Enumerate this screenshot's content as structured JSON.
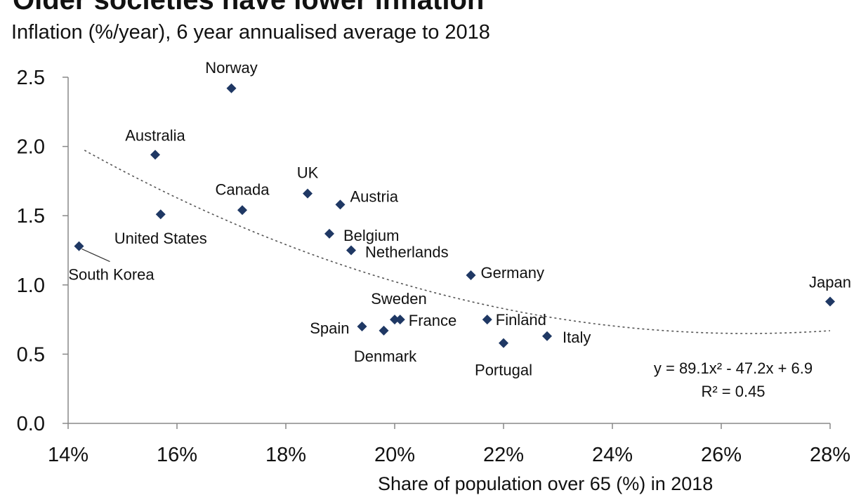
{
  "chart_data": {
    "type": "scatter",
    "title": "Older societies have lower inflation",
    "subtitle": "Inflation (%/year), 6 year annualised average to 2018",
    "xlabel": "Share of population over 65 (%) in 2018",
    "ylabel": "",
    "xlim": [
      14,
      28
    ],
    "ylim": [
      0,
      2.5
    ],
    "x_ticks": [
      "14%",
      "16%",
      "18%",
      "20%",
      "22%",
      "24%",
      "26%",
      "28%"
    ],
    "y_ticks": [
      "0.0",
      "0.5",
      "1.0",
      "1.5",
      "2.0",
      "2.5"
    ],
    "grid": false,
    "marker_color": "#1f3864",
    "points": [
      {
        "label": "Norway",
        "x": 17.0,
        "y": 2.42
      },
      {
        "label": "Australia",
        "x": 15.6,
        "y": 1.94
      },
      {
        "label": "United States",
        "x": 15.7,
        "y": 1.51
      },
      {
        "label": "South Korea",
        "x": 14.2,
        "y": 1.28
      },
      {
        "label": "Canada",
        "x": 17.2,
        "y": 1.54
      },
      {
        "label": "UK",
        "x": 18.4,
        "y": 1.66
      },
      {
        "label": "Austria",
        "x": 19.0,
        "y": 1.58
      },
      {
        "label": "Belgium",
        "x": 18.8,
        "y": 1.37
      },
      {
        "label": "Netherlands",
        "x": 19.2,
        "y": 1.25
      },
      {
        "label": "Germany",
        "x": 21.4,
        "y": 1.07
      },
      {
        "label": "Sweden",
        "x": 20.0,
        "y": 0.75
      },
      {
        "label": "France",
        "x": 20.1,
        "y": 0.75
      },
      {
        "label": "Spain",
        "x": 19.4,
        "y": 0.7
      },
      {
        "label": "Denmark",
        "x": 19.8,
        "y": 0.67
      },
      {
        "label": "Finland",
        "x": 21.7,
        "y": 0.75
      },
      {
        "label": "Italy",
        "x": 22.8,
        "y": 0.63
      },
      {
        "label": "Portugal",
        "x": 22.0,
        "y": 0.58
      },
      {
        "label": "Japan",
        "x": 28.0,
        "y": 0.88
      }
    ],
    "trendline": {
      "type": "polynomial",
      "style": "dotted",
      "equation": "y = 89.1x² - 47.2x + 6.9",
      "r_squared": "R² = 0.45",
      "coefficients": [
        89.1,
        -47.2,
        6.9
      ],
      "x_range": [
        14.3,
        28
      ]
    }
  }
}
